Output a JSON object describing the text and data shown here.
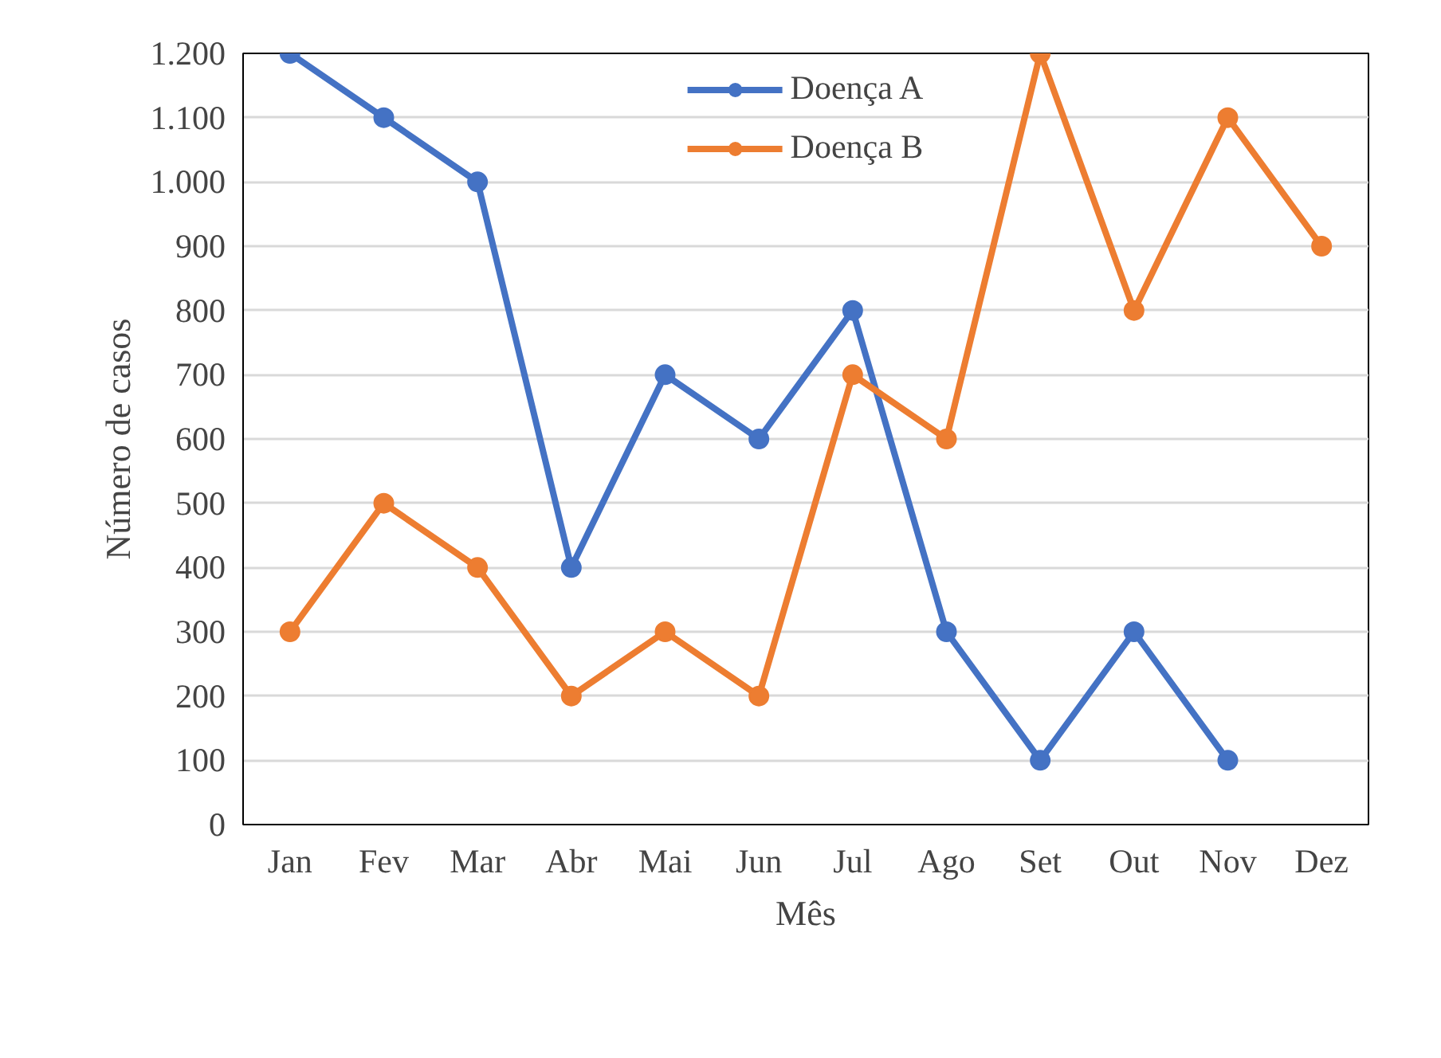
{
  "chart_data": {
    "type": "line",
    "xlabel": "Mês",
    "ylabel": "Número de casos",
    "categories": [
      "Jan",
      "Fev",
      "Mar",
      "Abr",
      "Mai",
      "Jun",
      "Jul",
      "Ago",
      "Set",
      "Out",
      "Nov",
      "Dez"
    ],
    "series": [
      {
        "name": "Doença A",
        "color": "#4472c4",
        "values": [
          1200,
          1100,
          1000,
          400,
          700,
          600,
          800,
          300,
          100,
          300,
          100,
          null
        ]
      },
      {
        "name": "Doença B",
        "color": "#ed7d31",
        "values": [
          300,
          500,
          400,
          200,
          300,
          200,
          700,
          600,
          1200,
          800,
          1100,
          900
        ]
      }
    ],
    "ylim": [
      0,
      1200
    ],
    "yticks": [
      0,
      100,
      200,
      300,
      400,
      500,
      600,
      700,
      800,
      900,
      {
        "value": 1000,
        "label": "1.000"
      },
      {
        "value": 1100,
        "label": "1.100"
      },
      {
        "value": 1200,
        "label": "1.200"
      }
    ],
    "grid": "y",
    "legend": "top",
    "marker": "circle",
    "line_style": "solid"
  }
}
